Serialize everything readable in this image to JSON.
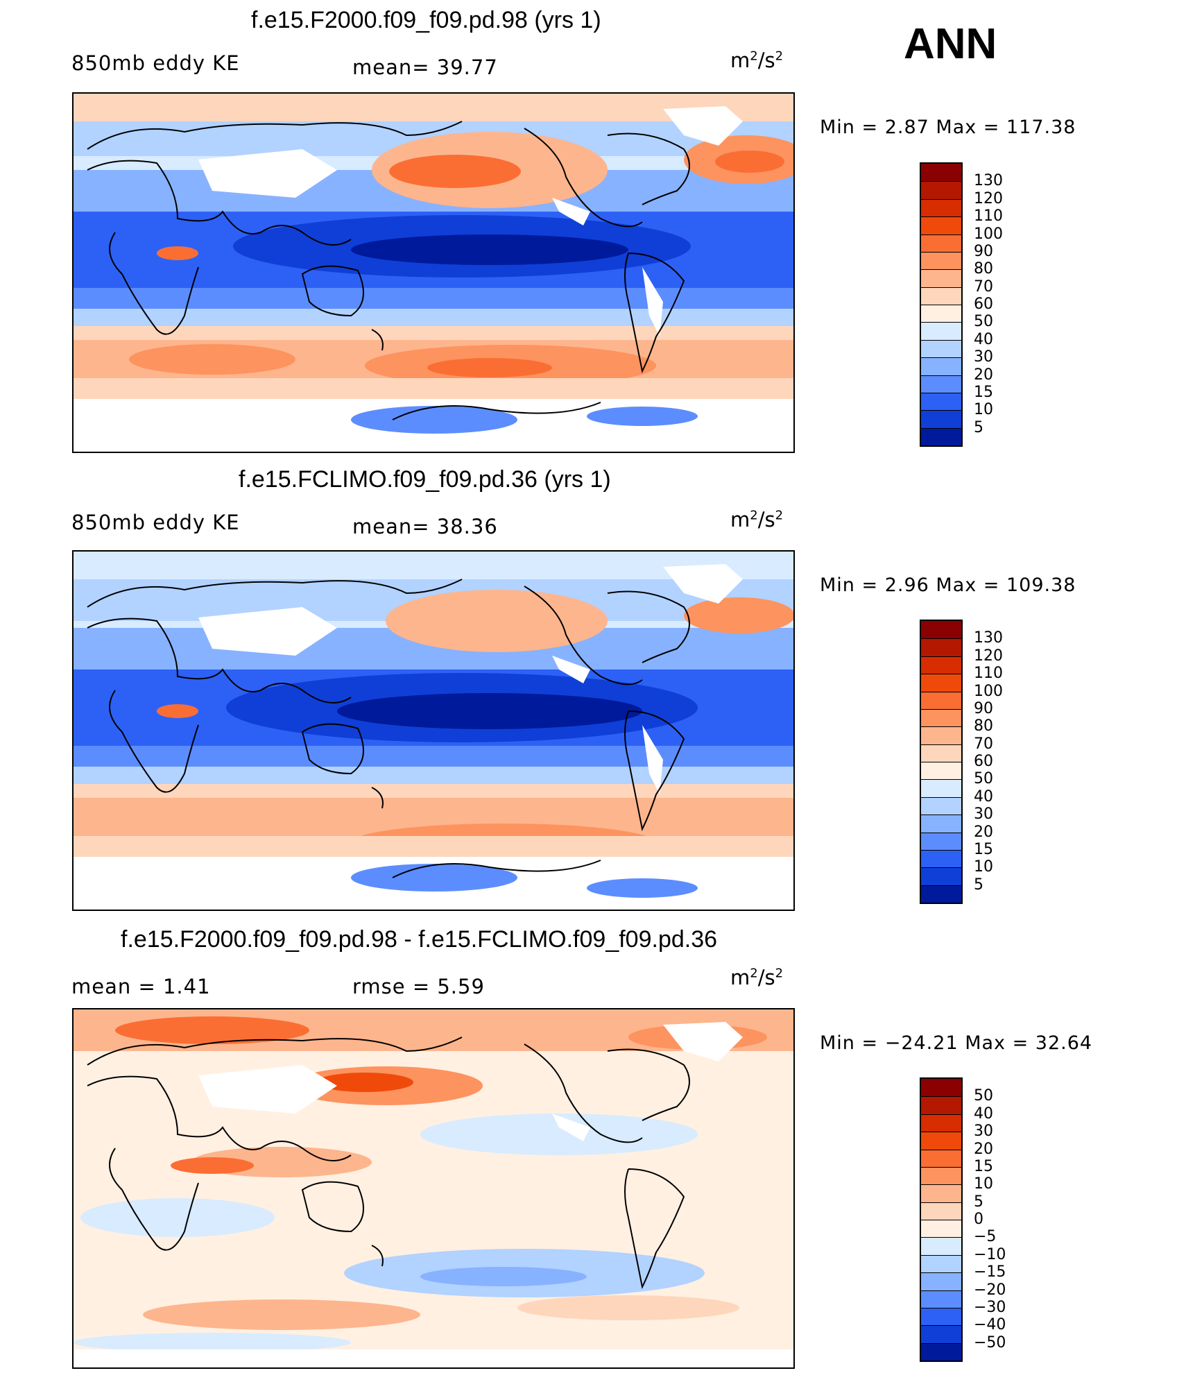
{
  "season": "ANN",
  "panels": [
    {
      "title": "f.e15.F2000.f09_f09.pd.98 (yrs 1)",
      "left_label": "850mb  eddy  KE",
      "center_label": "mean=    39.77",
      "units_base": "m",
      "units_exp1": "2",
      "units_mid": "/s",
      "units_exp2": "2",
      "minmax": "Min  =     2.87  Max  =  117.38",
      "colorbar": {
        "labels": [
          "130",
          "120",
          "110",
          "100",
          "90",
          "80",
          "70",
          "60",
          "50",
          "40",
          "30",
          "20",
          "15",
          "10",
          "5"
        ],
        "colors": [
          "#8b0000",
          "#b41800",
          "#d72d00",
          "#f04a0a",
          "#fa6e34",
          "#fd935f",
          "#fdb58d",
          "#fed6bc",
          "#fff0e2",
          "#d8ebff",
          "#b2d2ff",
          "#87b2ff",
          "#5c8dff",
          "#2d61f5",
          "#0f3fd6",
          "#001a9c"
        ]
      }
    },
    {
      "title": "f.e15.FCLIMO.f09_f09.pd.36 (yrs 1)",
      "left_label": "850mb  eddy  KE",
      "center_label": "mean=    38.36",
      "units_base": "m",
      "units_exp1": "2",
      "units_mid": "/s",
      "units_exp2": "2",
      "minmax": "Min  =     2.96  Max  =  109.38",
      "colorbar": {
        "labels": [
          "130",
          "120",
          "110",
          "100",
          "90",
          "80",
          "70",
          "60",
          "50",
          "40",
          "30",
          "20",
          "15",
          "10",
          "5"
        ],
        "colors": [
          "#8b0000",
          "#b41800",
          "#d72d00",
          "#f04a0a",
          "#fa6e34",
          "#fd935f",
          "#fdb58d",
          "#fed6bc",
          "#fff0e2",
          "#d8ebff",
          "#b2d2ff",
          "#87b2ff",
          "#5c8dff",
          "#2d61f5",
          "#0f3fd6",
          "#001a9c"
        ]
      }
    },
    {
      "title": "f.e15.F2000.f09_f09.pd.98 - f.e15.FCLIMO.f09_f09.pd.36",
      "left_label": "mean  =     1.41",
      "center_label": "rmse  =     5.59",
      "units_base": "m",
      "units_exp1": "2",
      "units_mid": "/s",
      "units_exp2": "2",
      "minmax": "Min  = −24.21  Max  =    32.64",
      "colorbar": {
        "labels": [
          "50",
          "40",
          "30",
          "20",
          "15",
          "10",
          "5",
          "0",
          "−5",
          "−10",
          "−15",
          "−20",
          "−30",
          "−40",
          "−50"
        ],
        "colors": [
          "#8b0000",
          "#b41800",
          "#d72d00",
          "#f04a0a",
          "#fa6e34",
          "#fd935f",
          "#fdb58d",
          "#fed6bc",
          "#fff0e2",
          "#d8ebff",
          "#b2d2ff",
          "#87b2ff",
          "#5c8dff",
          "#2d61f5",
          "#0f3fd6",
          "#001a9c"
        ]
      }
    }
  ]
}
